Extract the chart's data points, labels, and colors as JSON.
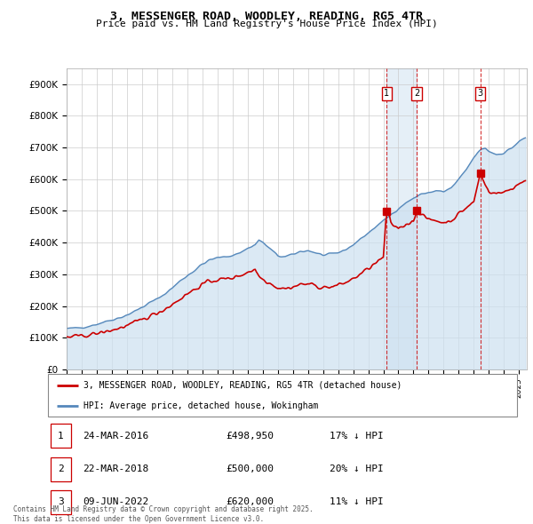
{
  "title": "3, MESSENGER ROAD, WOODLEY, READING, RG5 4TR",
  "subtitle": "Price paid vs. HM Land Registry's House Price Index (HPI)",
  "hpi_color": "#5588bb",
  "hpi_fill_color": "#cce0f0",
  "price_color": "#cc0000",
  "background_color": "#ffffff",
  "grid_color": "#cccccc",
  "ylim": [
    0,
    950000
  ],
  "yticks": [
    0,
    100000,
    200000,
    300000,
    400000,
    500000,
    600000,
    700000,
    800000,
    900000
  ],
  "ytick_labels": [
    "£0",
    "£100K",
    "£200K",
    "£300K",
    "£400K",
    "£500K",
    "£600K",
    "£700K",
    "£800K",
    "£900K"
  ],
  "xlim_start": 1995.0,
  "xlim_end": 2025.5,
  "transactions": [
    {
      "date": 2016.21,
      "price": 498950,
      "label": "1"
    },
    {
      "date": 2018.21,
      "price": 500000,
      "label": "2"
    },
    {
      "date": 2022.44,
      "price": 620000,
      "label": "3"
    }
  ],
  "transaction_table": [
    {
      "num": "1",
      "date": "24-MAR-2016",
      "price": "£498,950",
      "note": "17% ↓ HPI"
    },
    {
      "num": "2",
      "date": "22-MAR-2018",
      "price": "£500,000",
      "note": "20% ↓ HPI"
    },
    {
      "num": "3",
      "date": "09-JUN-2022",
      "price": "£620,000",
      "note": "11% ↓ HPI"
    }
  ],
  "legend_line1": "3, MESSENGER ROAD, WOODLEY, READING, RG5 4TR (detached house)",
  "legend_line2": "HPI: Average price, detached house, Wokingham",
  "footer": "Contains HM Land Registry data © Crown copyright and database right 2025.\nThis data is licensed under the Open Government Licence v3.0."
}
